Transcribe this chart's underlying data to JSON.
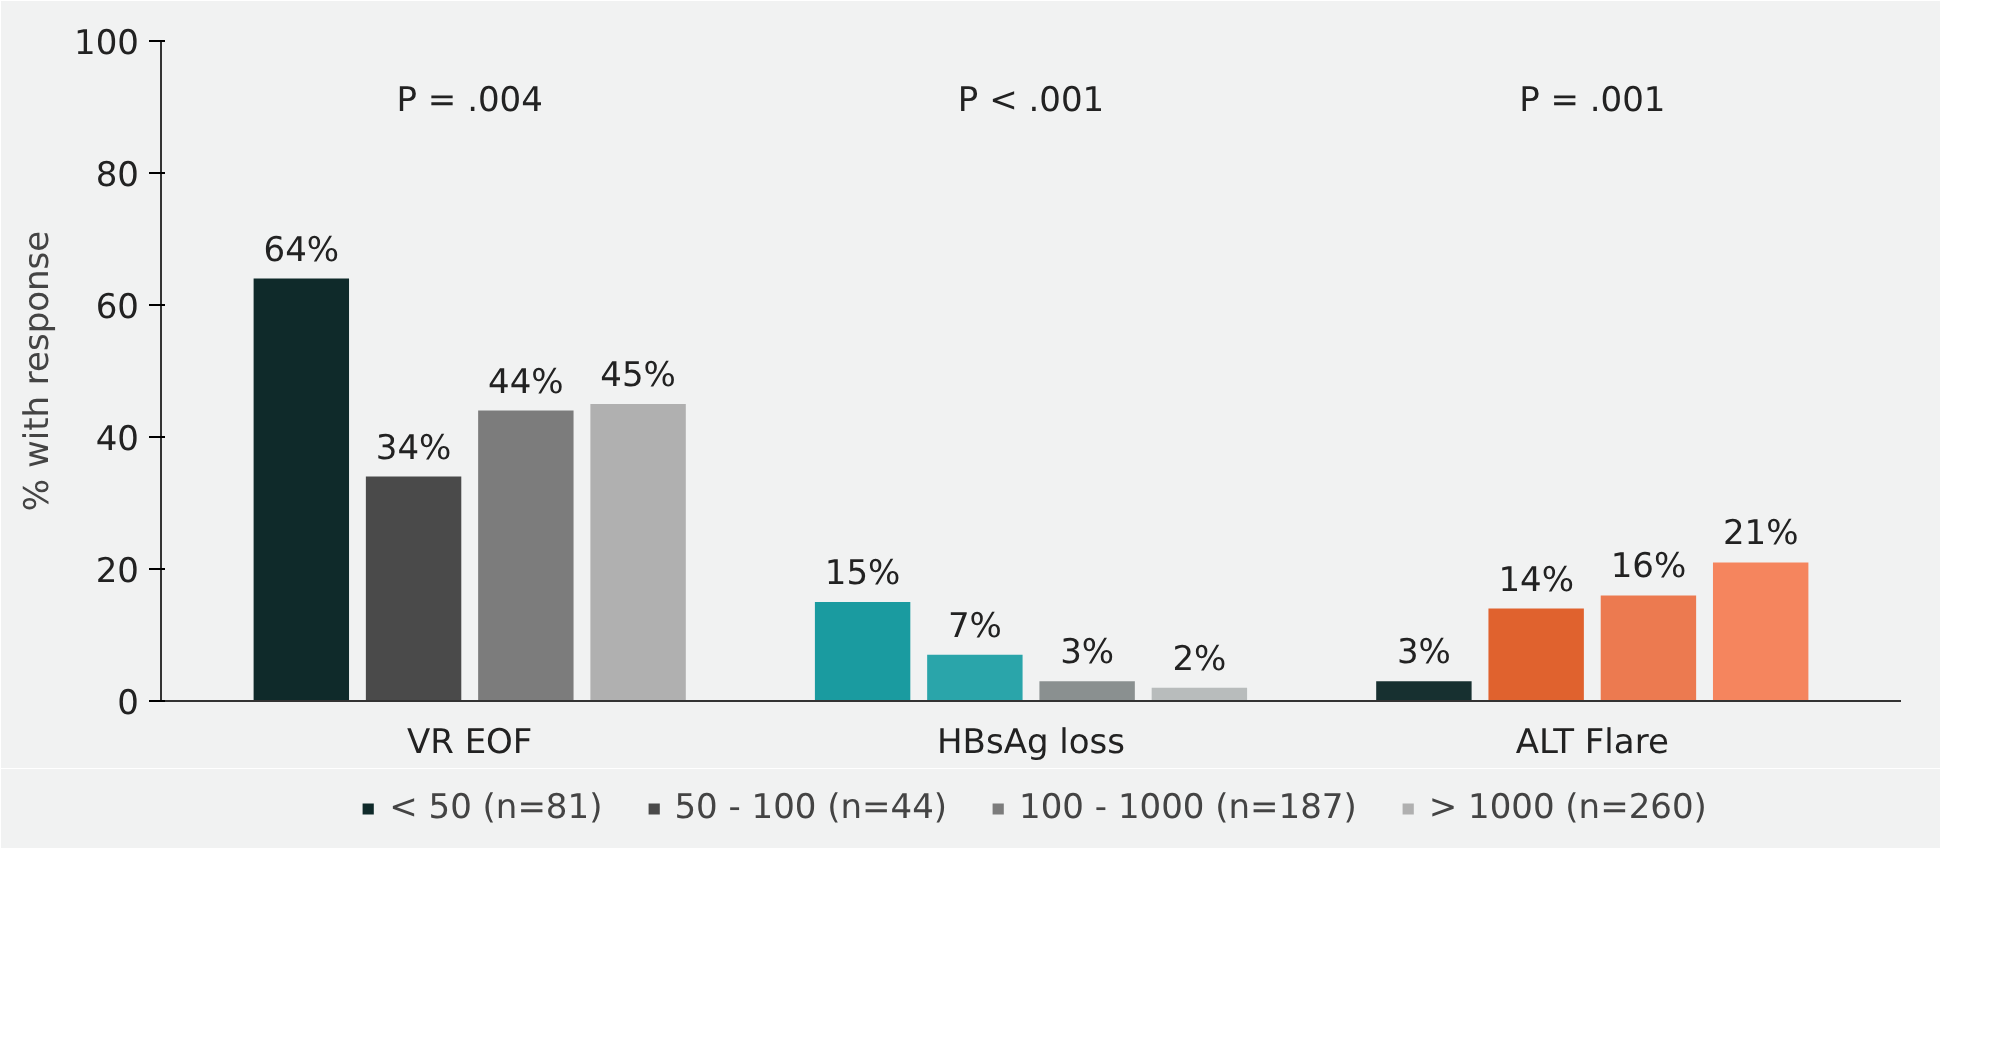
{
  "chart_data": {
    "type": "bar",
    "ylabel": "% with response",
    "categories": [
      "VR EOF",
      "HBsAg loss",
      "ALT Flare"
    ],
    "series": [
      {
        "name": "< 50 (n=81)",
        "color": "#0f2a2a",
        "colors": [
          "#0f2a2a",
          "#1a9ba0",
          "#173030"
        ],
        "values": [
          64,
          15,
          3
        ],
        "value_labels": [
          "64%",
          "15%",
          "3%"
        ]
      },
      {
        "name": "50 - 100 (n=44)",
        "color": "#4a4a4a",
        "colors": [
          "#4a4a4a",
          "#2aa5aa",
          "#e0622e"
        ],
        "values": [
          34,
          7,
          14
        ],
        "value_labels": [
          "34%",
          "7%",
          "14%"
        ]
      },
      {
        "name": "100 - 1000 (n=187)",
        "color": "#7c7c7c",
        "colors": [
          "#7c7c7c",
          "#8a9090",
          "#ec7a50"
        ],
        "values": [
          44,
          3,
          16
        ],
        "value_labels": [
          "44%",
          "3%",
          "16%"
        ]
      },
      {
        "name": "> 1000 (n=260)",
        "color": "#b0b0b0",
        "colors": [
          "#b0b0b0",
          "#b8bcbc",
          "#f5855e"
        ],
        "values": [
          45,
          2,
          21
        ],
        "value_labels": [
          "45%",
          "2%",
          "21%"
        ]
      }
    ],
    "ylim": [
      0,
      100
    ],
    "yticks": [
      0,
      20,
      40,
      60,
      80,
      100
    ],
    "grid": false,
    "legend": "bottom",
    "annotations": [
      "P = .004",
      "P < .001",
      "P = .001"
    ]
  }
}
